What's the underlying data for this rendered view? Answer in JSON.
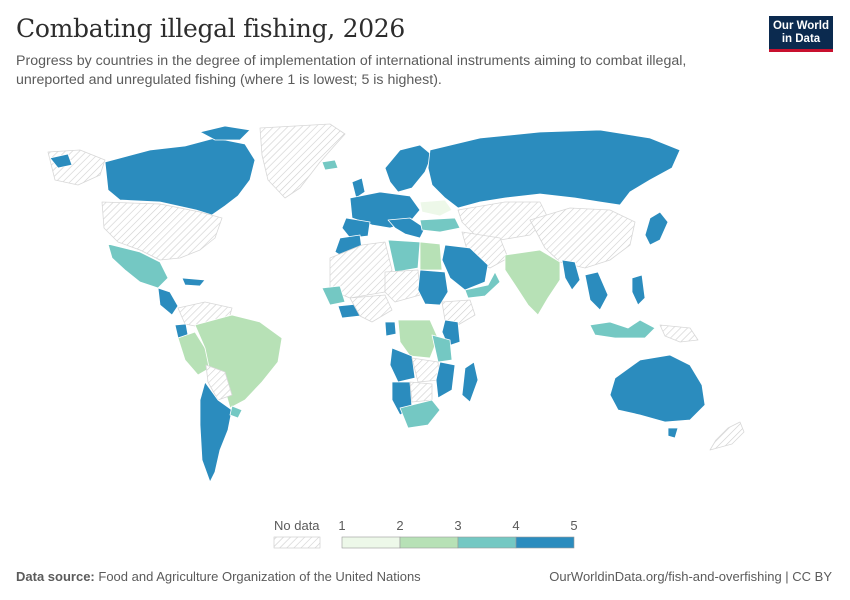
{
  "header": {
    "title": "Combating illegal fishing, 2026",
    "subtitle": "Progress by countries in the degree of implementation of international instruments aiming to combat illegal, unreported and unregulated fishing (where 1 is lowest; 5 is highest).",
    "logo_line1": "Our World",
    "logo_line2": "in Data"
  },
  "legend": {
    "no_data_label": "No data",
    "ticks": [
      "1",
      "2",
      "3",
      "4",
      "5"
    ],
    "colors": [
      "#edf8e9",
      "#b7e1b6",
      "#74c8c3",
      "#2b8cbe"
    ],
    "no_data_color": "hatched"
  },
  "footer": {
    "source_label": "Data source:",
    "source_text": "Food and Agriculture Organization of the United Nations",
    "url": "OurWorldinData.org/fish-and-overfishing | CC BY"
  },
  "chart_data": {
    "type": "choropleth",
    "year": "2026",
    "scale": {
      "min": 1,
      "max": 5,
      "bins": [
        [
          1,
          2
        ],
        [
          2,
          3
        ],
        [
          3,
          4
        ],
        [
          4,
          5
        ]
      ]
    },
    "regions": [
      {
        "name": "Canada",
        "bin": "4-5"
      },
      {
        "name": "United States",
        "bin": "no data"
      },
      {
        "name": "Greenland",
        "bin": "no data"
      },
      {
        "name": "Mexico",
        "bin": "3-4"
      },
      {
        "name": "Brazil",
        "bin": "2-3"
      },
      {
        "name": "Argentina",
        "bin": "4-5"
      },
      {
        "name": "Chile",
        "bin": "4-5"
      },
      {
        "name": "Uruguay",
        "bin": "3-4"
      },
      {
        "name": "Russia",
        "bin": "4-5"
      },
      {
        "name": "Norway",
        "bin": "4-5"
      },
      {
        "name": "Australia",
        "bin": "4-5"
      },
      {
        "name": "India",
        "bin": "2-3"
      },
      {
        "name": "China",
        "bin": "no data"
      },
      {
        "name": "Japan",
        "bin": "4-5"
      },
      {
        "name": "Philippines",
        "bin": "4-5"
      },
      {
        "name": "Saudi Arabia",
        "bin": "4-5"
      },
      {
        "name": "Egypt",
        "bin": "2-3"
      },
      {
        "name": "Libya",
        "bin": "3-4"
      },
      {
        "name": "Sudan",
        "bin": "4-5"
      },
      {
        "name": "South Africa",
        "bin": "3-4"
      },
      {
        "name": "Namibia",
        "bin": "4-5"
      },
      {
        "name": "Angola",
        "bin": "4-5"
      },
      {
        "name": "DR Congo",
        "bin": "2-3"
      },
      {
        "name": "Madagascar",
        "bin": "4-5"
      },
      {
        "name": "Kenya",
        "bin": "4-5"
      },
      {
        "name": "Tanzania",
        "bin": "3-4"
      },
      {
        "name": "Mozambique",
        "bin": "4-5"
      },
      {
        "name": "Turkey",
        "bin": "3-4"
      },
      {
        "name": "Morocco",
        "bin": "4-5"
      },
      {
        "name": "Peru",
        "bin": "2-3"
      },
      {
        "name": "Indonesia",
        "bin": "3-4"
      },
      {
        "name": "Myanmar",
        "bin": "4-5"
      },
      {
        "name": "Ukraine",
        "bin": "1-2"
      }
    ]
  }
}
